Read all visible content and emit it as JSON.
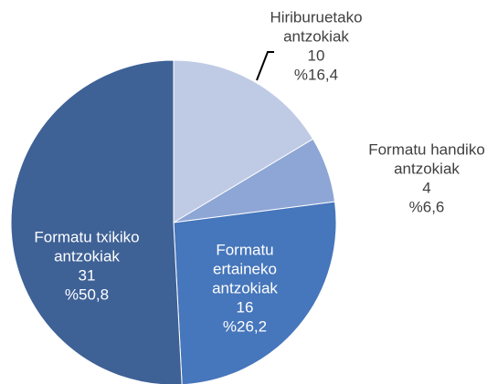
{
  "chart_data": {
    "type": "pie",
    "categories": [
      [
        "Hiriburuetako",
        "antzokiak"
      ],
      [
        "Formatu handiko",
        "antzokiak"
      ],
      [
        "Formatu",
        "ertaineko",
        "antzokiak"
      ],
      [
        "Formatu txikiko",
        "antzokiak"
      ]
    ],
    "values": [
      10,
      4,
      16,
      31
    ],
    "percentages": [
      16.4,
      6.6,
      26.2,
      50.8
    ],
    "percentage_labels": [
      "%16,4",
      "%6,6",
      "%26,2",
      "%50,8"
    ],
    "colors": [
      "#bfcbe5",
      "#8ea6d5",
      "#4676bb",
      "#3e6196"
    ]
  }
}
